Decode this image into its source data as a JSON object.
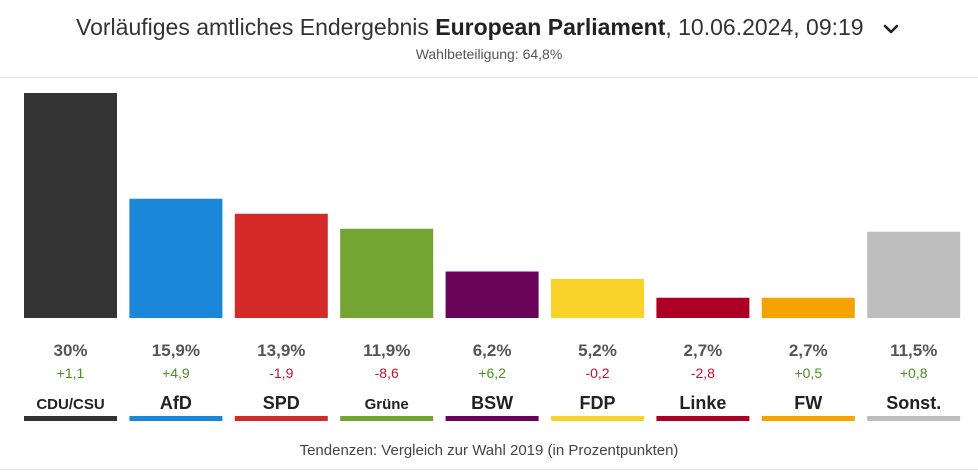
{
  "header": {
    "title_prefix": "Vorläufiges amtliches Endergebnis",
    "title_bold": "European Parliament",
    "title_suffix": ", 10.06.2024, 09:19",
    "turnout": "Wahlbeteiligung: 64,8%"
  },
  "icons": {
    "dropdown": "chevron-down-icon"
  },
  "footer": {
    "note": "Tendenzen: Vergleich zur Wahl 2019 (in Prozentpunkten)"
  },
  "chart_data": {
    "type": "bar",
    "categories": [
      "CDU/CSU",
      "AfD",
      "SPD",
      "Grüne",
      "BSW",
      "FDP",
      "Linke",
      "FW",
      "Sonst."
    ],
    "values": [
      30,
      15.9,
      13.9,
      11.9,
      6.2,
      5.2,
      2.7,
      2.7,
      11.5
    ],
    "value_labels": [
      "30%",
      "15,9%",
      "13,9%",
      "11,9%",
      "6,2%",
      "5,2%",
      "2,7%",
      "2,7%",
      "11,5%"
    ],
    "changes": [
      1.1,
      4.9,
      -1.9,
      -8.6,
      6.2,
      -0.2,
      -2.8,
      0.5,
      0.8
    ],
    "change_labels": [
      "+1,1",
      "+4,9",
      "-1,9",
      "-8,6",
      "+6,2",
      "-0,2",
      "-2,8",
      "+0,5",
      "+0,8"
    ],
    "colors": [
      "#333333",
      "#1a87d8",
      "#d42a2a",
      "#74a533",
      "#6a0459",
      "#f9d22b",
      "#ad0025",
      "#f4a300",
      "#bdbdbd"
    ],
    "change_colors": {
      "positive": "#4a8f1f",
      "negative": "#c8102e"
    },
    "ylim": [
      0,
      30
    ],
    "grid": false
  }
}
